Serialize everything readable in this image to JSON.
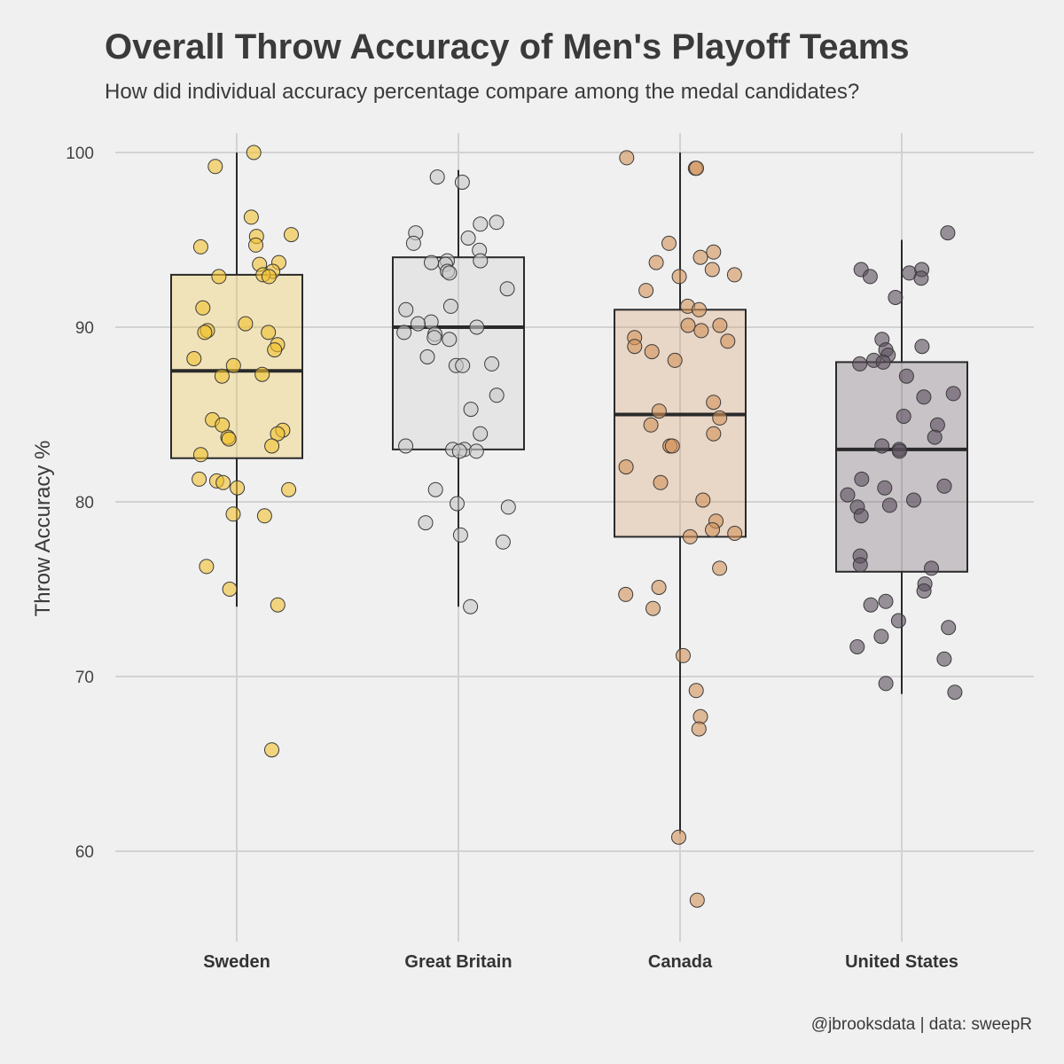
{
  "chart_data": {
    "type": "box-jitter",
    "title": "Overall Throw Accuracy of Men's Playoff Teams",
    "subtitle": "How did individual accuracy percentage compare among the medal candidates?",
    "ylabel": "Throw Accuracy %",
    "xlabel": "",
    "caption": "@jbrooksdata | data: sweepR",
    "ylim": [
      55,
      102
    ],
    "yticks": [
      60,
      70,
      80,
      90,
      100
    ],
    "grid": true,
    "legend": "none",
    "categories": [
      "Sweden",
      "Great Britain",
      "Canada",
      "United States"
    ],
    "series": [
      {
        "category": "Sweden",
        "color": "#f2c230",
        "box": {
          "min": 74,
          "q1": 82.5,
          "median": 87.5,
          "q3": 93,
          "max": 100
        },
        "points": [
          100,
          99.2,
          96.3,
          95.3,
          95.2,
          94.7,
          94.6,
          93.7,
          93.6,
          93.2,
          93.0,
          92.9,
          92.9,
          91.1,
          90.2,
          89.8,
          89.7,
          89.7,
          89.0,
          88.7,
          88.2,
          87.8,
          87.3,
          87.2,
          84.7,
          84.4,
          84.1,
          83.9,
          83.7,
          83.6,
          83.2,
          82.7,
          81.3,
          81.2,
          81.1,
          80.8,
          80.7,
          79.3,
          79.2,
          76.3,
          75.0,
          74.1,
          65.8
        ]
      },
      {
        "category": "Great Britain",
        "color": "#c8c8c8",
        "box": {
          "min": 74,
          "q1": 83,
          "median": 90,
          "q3": 94,
          "max": 99
        },
        "points": [
          98.6,
          98.3,
          96.0,
          95.9,
          95.4,
          95.1,
          94.8,
          94.4,
          93.8,
          93.8,
          93.7,
          93.6,
          93.2,
          93.1,
          92.2,
          91.2,
          91.0,
          90.3,
          90.2,
          90.0,
          89.7,
          89.6,
          89.4,
          89.3,
          88.3,
          87.9,
          87.8,
          87.8,
          86.1,
          85.3,
          83.9,
          83.2,
          83.0,
          83.0,
          82.9,
          82.9,
          80.7,
          79.9,
          79.7,
          78.8,
          78.1,
          77.7,
          74.0
        ]
      },
      {
        "category": "Canada",
        "color": "#d4925a",
        "box": {
          "min": 61,
          "q1": 78,
          "median": 85,
          "q3": 91,
          "max": 100
        },
        "points": [
          99.7,
          99.1,
          99.1,
          94.8,
          94.3,
          94.0,
          93.7,
          93.3,
          93.0,
          92.9,
          92.1,
          91.2,
          91.0,
          90.1,
          90.1,
          89.8,
          89.4,
          89.2,
          88.9,
          88.6,
          88.1,
          85.7,
          85.2,
          84.8,
          84.4,
          83.9,
          83.2,
          83.2,
          82.0,
          81.1,
          80.1,
          78.9,
          78.4,
          78.2,
          78.0,
          76.2,
          75.1,
          74.7,
          73.9,
          71.2,
          69.2,
          67.7,
          67.0,
          60.8,
          57.2
        ]
      },
      {
        "category": "United States",
        "color": "#5c4f5e",
        "box": {
          "min": 69,
          "q1": 76,
          "median": 83,
          "q3": 88,
          "max": 95
        },
        "points": [
          95.4,
          93.3,
          93.3,
          93.1,
          92.9,
          92.8,
          91.7,
          89.3,
          88.9,
          88.7,
          88.4,
          88.1,
          88.0,
          87.9,
          87.2,
          86.2,
          86.0,
          84.9,
          84.4,
          83.7,
          83.2,
          83.0,
          82.9,
          81.3,
          80.9,
          80.8,
          80.4,
          80.1,
          79.8,
          79.7,
          79.2,
          76.9,
          76.4,
          76.2,
          75.3,
          74.9,
          74.3,
          74.1,
          73.2,
          72.8,
          72.3,
          71.7,
          71.0,
          69.6,
          69.1
        ]
      }
    ]
  }
}
